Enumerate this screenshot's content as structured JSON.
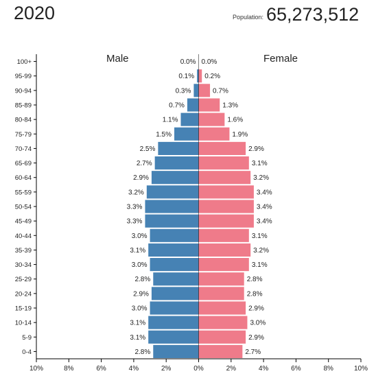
{
  "header": {
    "year": "2020",
    "population_label": "Population:",
    "population_value": "65,273,512"
  },
  "chart_data": {
    "type": "bar",
    "orientation": "horizontal-population-pyramid",
    "categories": [
      "0-4",
      "5-9",
      "10-14",
      "15-19",
      "20-24",
      "25-29",
      "30-34",
      "35-39",
      "40-44",
      "45-49",
      "50-54",
      "55-59",
      "60-64",
      "65-69",
      "70-74",
      "75-79",
      "80-84",
      "85-89",
      "90-94",
      "95-99",
      "100+"
    ],
    "series": [
      {
        "name": "Male",
        "color": "#4682b4",
        "values": [
          2.8,
          3.1,
          3.1,
          3.0,
          2.9,
          2.8,
          3.0,
          3.1,
          3.0,
          3.3,
          3.3,
          3.2,
          2.9,
          2.7,
          2.5,
          1.5,
          1.1,
          0.7,
          0.3,
          0.1,
          0.0
        ],
        "labels": [
          "2.8%",
          "3.1%",
          "3.1%",
          "3.0%",
          "2.9%",
          "2.8%",
          "3.0%",
          "3.1%",
          "3.0%",
          "3.3%",
          "3.3%",
          "3.2%",
          "2.9%",
          "2.7%",
          "2.5%",
          "1.5%",
          "1.1%",
          "0.7%",
          "0.3%",
          "0.1%",
          "0.0%"
        ]
      },
      {
        "name": "Female",
        "color": "#ef7b8a",
        "values": [
          2.7,
          2.9,
          3.0,
          2.9,
          2.8,
          2.8,
          3.1,
          3.2,
          3.1,
          3.4,
          3.4,
          3.4,
          3.2,
          3.1,
          2.9,
          1.9,
          1.6,
          1.3,
          0.7,
          0.2,
          0.0
        ],
        "labels": [
          "2.7%",
          "2.9%",
          "3.0%",
          "2.9%",
          "2.8%",
          "2.8%",
          "3.1%",
          "3.2%",
          "3.1%",
          "3.4%",
          "3.4%",
          "3.4%",
          "3.2%",
          "3.1%",
          "2.9%",
          "1.9%",
          "1.6%",
          "1.3%",
          "0.7%",
          "0.2%",
          "0.0%"
        ]
      }
    ],
    "x_ticks": [
      "10%",
      "8%",
      "6%",
      "4%",
      "2%",
      "0%",
      "2%",
      "4%",
      "6%",
      "8%",
      "10%"
    ],
    "xlim": [
      -10,
      10
    ],
    "grid": false
  }
}
